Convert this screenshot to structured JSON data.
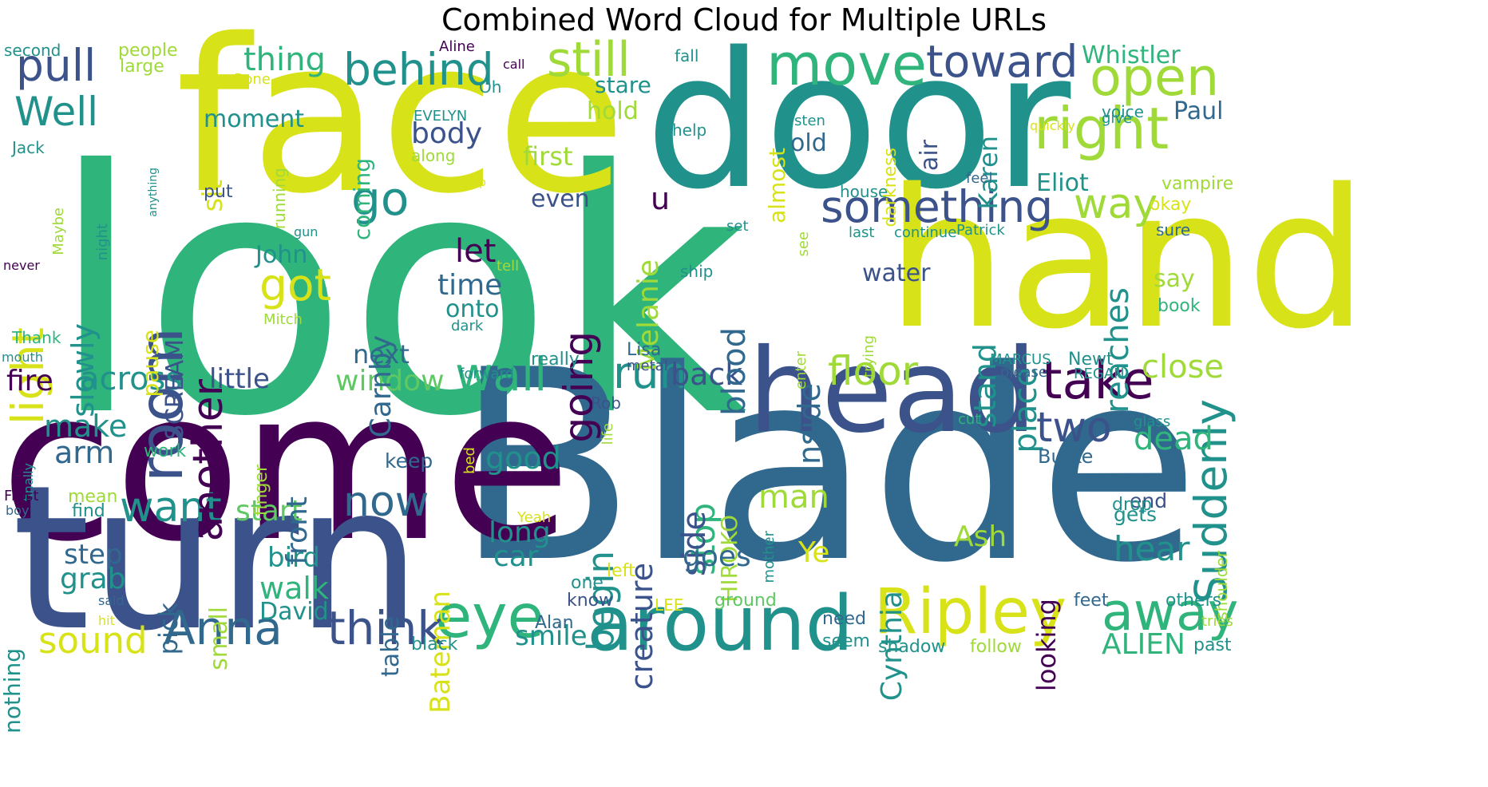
{
  "title": "Combined Word Cloud for Multiple URLs",
  "colors": {
    "purple": "#440154",
    "indigo": "#3b528b",
    "blue": "#31688e",
    "teal": "#21918c",
    "green": "#2fb47c",
    "lightgreen": "#5ec962",
    "lime": "#a0da39",
    "yellow": "#d8e219"
  },
  "words": [
    {
      "text": "look",
      "color": "green"
    },
    {
      "text": "face",
      "color": "yellow"
    },
    {
      "text": "door",
      "color": "teal"
    },
    {
      "text": "hand",
      "color": "yellow"
    },
    {
      "text": "Blade",
      "color": "blue"
    },
    {
      "text": "come",
      "color": "purple"
    },
    {
      "text": "turn",
      "color": "indigo"
    },
    {
      "text": "head",
      "color": "indigo"
    },
    {
      "text": "around",
      "color": "teal"
    },
    {
      "text": "Ripley",
      "color": "yellow"
    },
    {
      "text": "room",
      "color": "indigo"
    },
    {
      "text": "move",
      "color": "green"
    },
    {
      "text": "right",
      "color": "lime"
    },
    {
      "text": "open",
      "color": "lime"
    },
    {
      "text": "toward",
      "color": "indigo"
    },
    {
      "text": "still",
      "color": "lime"
    },
    {
      "text": "behind",
      "color": "teal"
    },
    {
      "text": "pull",
      "color": "indigo"
    },
    {
      "text": "thing",
      "color": "green"
    },
    {
      "text": "Well",
      "color": "teal"
    },
    {
      "text": "light",
      "color": "yellow"
    },
    {
      "text": "something",
      "color": "indigo"
    },
    {
      "text": "way",
      "color": "lime"
    },
    {
      "text": "take",
      "color": "purple"
    },
    {
      "text": "two",
      "color": "indigo"
    },
    {
      "text": "eye",
      "color": "green"
    },
    {
      "text": "away",
      "color": "green"
    },
    {
      "text": "Anna",
      "color": "blue"
    },
    {
      "text": "think",
      "color": "indigo"
    },
    {
      "text": "sound",
      "color": "yellow"
    },
    {
      "text": "wall",
      "color": "green"
    },
    {
      "text": "run",
      "color": "teal"
    },
    {
      "text": "back",
      "color": "indigo"
    },
    {
      "text": "floor",
      "color": "lime"
    },
    {
      "text": "want",
      "color": "teal"
    },
    {
      "text": "now",
      "color": "blue"
    },
    {
      "text": "go",
      "color": "teal"
    },
    {
      "text": "got",
      "color": "yellow"
    },
    {
      "text": "another",
      "color": "purple"
    },
    {
      "text": "going",
      "color": "purple"
    },
    {
      "text": "across",
      "color": "teal"
    },
    {
      "text": "fire",
      "color": "purple"
    },
    {
      "text": "Suddenly",
      "color": "teal"
    },
    {
      "text": "close",
      "color": "lime"
    },
    {
      "text": "dead",
      "color": "green"
    },
    {
      "text": "hear",
      "color": "teal"
    },
    {
      "text": "Whistler",
      "color": "green"
    },
    {
      "text": "Paul",
      "color": "blue"
    },
    {
      "text": "Eliot",
      "color": "teal"
    },
    {
      "text": "Karen",
      "color": "teal"
    },
    {
      "text": "air",
      "color": "indigo"
    },
    {
      "text": "old",
      "color": "blue"
    },
    {
      "text": "hold",
      "color": "lime"
    },
    {
      "text": "stare",
      "color": "teal"
    },
    {
      "text": "body",
      "color": "indigo"
    },
    {
      "text": "first",
      "color": "lime"
    },
    {
      "text": "moment",
      "color": "teal"
    },
    {
      "text": "even",
      "color": "indigo"
    },
    {
      "text": "u",
      "color": "purple"
    },
    {
      "text": "Melanie",
      "color": "lime"
    },
    {
      "text": "let",
      "color": "purple"
    },
    {
      "text": "time",
      "color": "blue"
    },
    {
      "text": "onto",
      "color": "teal"
    },
    {
      "text": "next",
      "color": "blue"
    },
    {
      "text": "window",
      "color": "lightgreen"
    },
    {
      "text": "little",
      "color": "indigo"
    },
    {
      "text": "slowly",
      "color": "teal"
    },
    {
      "text": "John",
      "color": "teal"
    },
    {
      "text": "Carnby",
      "color": "blue"
    },
    {
      "text": "sit",
      "color": "yellow"
    },
    {
      "text": "coming",
      "color": "green"
    },
    {
      "text": "blood",
      "color": "blue"
    },
    {
      "text": "inside",
      "color": "blue"
    },
    {
      "text": "water",
      "color": "indigo"
    },
    {
      "text": "stand",
      "color": "teal"
    },
    {
      "text": "place",
      "color": "teal"
    },
    {
      "text": "reaches",
      "color": "teal"
    },
    {
      "text": "say",
      "color": "lime"
    },
    {
      "text": "begin",
      "color": "teal"
    },
    {
      "text": "creature",
      "color": "indigo"
    },
    {
      "text": "stop",
      "color": "green"
    },
    {
      "text": "HIROKO",
      "color": "lime"
    },
    {
      "text": "man",
      "color": "lime"
    },
    {
      "text": "side",
      "color": "indigo"
    },
    {
      "text": "good",
      "color": "teal"
    },
    {
      "text": "long",
      "color": "teal"
    },
    {
      "text": "car",
      "color": "teal"
    },
    {
      "text": "Bateman",
      "color": "yellow"
    },
    {
      "text": "make",
      "color": "teal"
    },
    {
      "text": "arm",
      "color": "blue"
    },
    {
      "text": "step",
      "color": "blue"
    },
    {
      "text": "grab",
      "color": "teal"
    },
    {
      "text": "pick",
      "color": "blue"
    },
    {
      "text": "bird",
      "color": "teal"
    },
    {
      "text": "walk",
      "color": "green"
    },
    {
      "text": "David",
      "color": "teal"
    },
    {
      "text": "small",
      "color": "lime"
    },
    {
      "text": "table",
      "color": "blue"
    },
    {
      "text": "start",
      "color": "lightgreen"
    },
    {
      "text": "front",
      "color": "blue"
    },
    {
      "text": "smile",
      "color": "teal"
    },
    {
      "text": "goes",
      "color": "blue"
    },
    {
      "text": "Ye",
      "color": "yellow"
    },
    {
      "text": "Ash",
      "color": "lime"
    },
    {
      "text": "Cynthia",
      "color": "teal"
    },
    {
      "text": "looking",
      "color": "purple"
    },
    {
      "text": "ALIEN",
      "color": "green"
    },
    {
      "text": "nothing",
      "color": "teal"
    },
    {
      "text": "SCREAM",
      "color": "indigo"
    },
    {
      "text": "pause",
      "color": "yellow"
    },
    {
      "text": "keep",
      "color": "blue"
    },
    {
      "text": "finger",
      "color": "lime"
    },
    {
      "text": "work",
      "color": "green"
    },
    {
      "text": "find",
      "color": "teal"
    },
    {
      "text": "mean",
      "color": "lime"
    },
    {
      "text": "Burke",
      "color": "blue"
    },
    {
      "text": "end",
      "color": "indigo"
    },
    {
      "text": "gets",
      "color": "teal"
    },
    {
      "text": "drop",
      "color": "teal"
    },
    {
      "text": "shoulder",
      "color": "lime"
    },
    {
      "text": "feet",
      "color": "blue"
    },
    {
      "text": "others",
      "color": "teal"
    },
    {
      "text": "tries",
      "color": "lime"
    },
    {
      "text": "past",
      "color": "teal"
    },
    {
      "text": "need",
      "color": "blue"
    },
    {
      "text": "seem",
      "color": "teal"
    },
    {
      "text": "shadow",
      "color": "teal"
    },
    {
      "text": "follow",
      "color": "lime"
    },
    {
      "text": "black",
      "color": "teal"
    },
    {
      "text": "Alan",
      "color": "blue"
    },
    {
      "text": "know",
      "color": "indigo"
    },
    {
      "text": "one",
      "color": "teal"
    },
    {
      "text": "left",
      "color": "yellow"
    },
    {
      "text": "LEE",
      "color": "yellow"
    },
    {
      "text": "ground",
      "color": "lightgreen"
    },
    {
      "text": "Yeah",
      "color": "yellow"
    },
    {
      "text": "mother",
      "color": "teal"
    },
    {
      "text": "life",
      "color": "lime"
    },
    {
      "text": "bed",
      "color": "yellow"
    },
    {
      "text": "Rob",
      "color": "indigo"
    },
    {
      "text": "forward",
      "color": "teal"
    },
    {
      "text": "really",
      "color": "teal"
    },
    {
      "text": "Lisa",
      "color": "blue"
    },
    {
      "text": "metal",
      "color": "indigo"
    },
    {
      "text": "enter",
      "color": "lime"
    },
    {
      "text": "trying",
      "color": "lime"
    },
    {
      "text": "MARCUS",
      "color": "teal"
    },
    {
      "text": "please",
      "color": "blue"
    },
    {
      "text": "Newt",
      "color": "teal"
    },
    {
      "text": "REGAN",
      "color": "teal"
    },
    {
      "text": "cut",
      "color": "green"
    },
    {
      "text": "glass",
      "color": "teal"
    },
    {
      "text": "book",
      "color": "green"
    },
    {
      "text": "sure",
      "color": "blue"
    },
    {
      "text": "okay",
      "color": "yellow"
    },
    {
      "text": "vampire",
      "color": "lime"
    },
    {
      "text": "feel",
      "color": "blue"
    },
    {
      "text": "house",
      "color": "teal"
    },
    {
      "text": "see",
      "color": "lime"
    },
    {
      "text": "set",
      "color": "teal"
    },
    {
      "text": "last",
      "color": "teal"
    },
    {
      "text": "continue",
      "color": "teal"
    },
    {
      "text": "Patrick",
      "color": "teal"
    },
    {
      "text": "help",
      "color": "teal"
    },
    {
      "text": "ship",
      "color": "teal"
    },
    {
      "text": "almost",
      "color": "yellow"
    },
    {
      "text": "fall",
      "color": "teal"
    },
    {
      "text": "listen",
      "color": "teal"
    },
    {
      "text": "darkness",
      "color": "yellow"
    },
    {
      "text": "voice",
      "color": "teal"
    },
    {
      "text": "quickly",
      "color": "yellow"
    },
    {
      "text": "give",
      "color": "teal"
    },
    {
      "text": "put",
      "color": "indigo"
    },
    {
      "text": "running",
      "color": "lime"
    },
    {
      "text": "anything",
      "color": "teal"
    },
    {
      "text": "night",
      "color": "teal"
    },
    {
      "text": "Maybe",
      "color": "lime"
    },
    {
      "text": "Jack",
      "color": "teal"
    },
    {
      "text": "second",
      "color": "teal"
    },
    {
      "text": "people",
      "color": "lime"
    },
    {
      "text": "large",
      "color": "lime"
    },
    {
      "text": "Aline",
      "color": "purple"
    },
    {
      "text": "call",
      "color": "purple"
    },
    {
      "text": "Bone",
      "color": "yellow"
    },
    {
      "text": "Oh",
      "color": "teal"
    },
    {
      "text": "EVELYN",
      "color": "teal"
    },
    {
      "text": "along",
      "color": "lime"
    },
    {
      "text": "top",
      "color": "yellow"
    },
    {
      "text": "gun",
      "color": "teal"
    },
    {
      "text": "tell",
      "color": "lime"
    },
    {
      "text": "Mitch",
      "color": "lime"
    },
    {
      "text": "dark",
      "color": "teal"
    },
    {
      "text": "Thank",
      "color": "green"
    },
    {
      "text": "mouth",
      "color": "teal"
    },
    {
      "text": "never",
      "color": "purple"
    },
    {
      "text": "finally",
      "color": "teal"
    },
    {
      "text": "Frost",
      "color": "purple"
    },
    {
      "text": "boy",
      "color": "blue"
    },
    {
      "text": "said",
      "color": "blue"
    },
    {
      "text": "hit",
      "color": "yellow"
    }
  ]
}
